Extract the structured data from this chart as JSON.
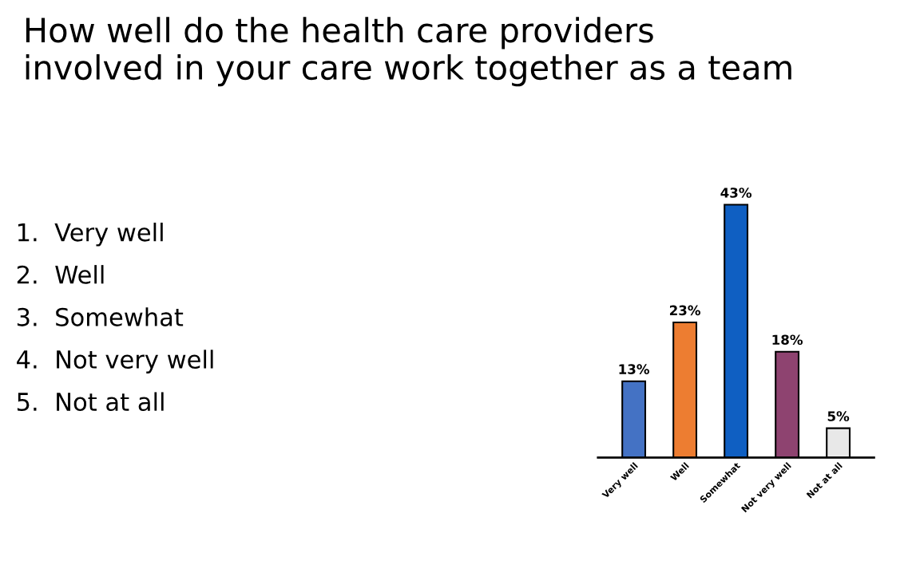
{
  "chart_data": {
    "type": "bar",
    "title": "How well do the health care providers\ninvolved in your care work together as a team",
    "categories": [
      "Very well",
      "Well",
      "Somewhat",
      "Not very well",
      "Not at all"
    ],
    "values": [
      13,
      23,
      43,
      18,
      5
    ],
    "colors": [
      "#4472c4",
      "#ed7d31",
      "#0f5fc2",
      "#8e4370",
      "#e8e8e8"
    ],
    "value_labels": [
      "13%",
      "23%",
      "43%",
      "18%",
      "5%"
    ],
    "annotations": [
      "1.  Very well",
      "2.  Well",
      "3.  Somewhat",
      "4.  Not very well",
      "5.  Not at all"
    ]
  }
}
